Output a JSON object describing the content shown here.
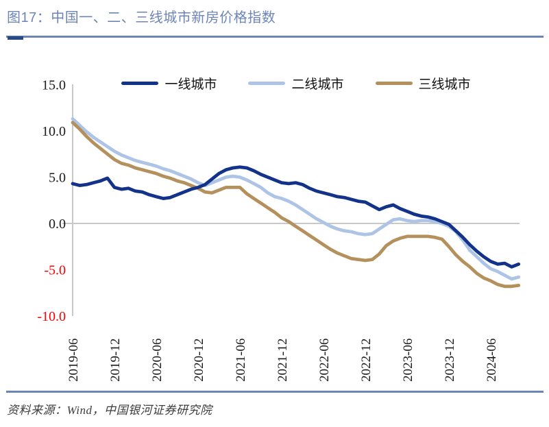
{
  "figure": {
    "title": "图17：中国一、二、三线城市新房价格指数"
  },
  "legend": {
    "items": [
      {
        "key": "tier1",
        "label": "一线城市"
      },
      {
        "key": "tier2",
        "label": "二线城市"
      },
      {
        "key": "tier3",
        "label": "三线城市"
      }
    ]
  },
  "footer": {
    "source": "资料来源：Wind，中国银河证券研究院"
  },
  "colors": {
    "accent_blue": "#6d84b7",
    "accent_dark": "#2a4a86",
    "axis_gray": "#c8c8c8",
    "tick_text": "#1a1a1a",
    "negative_red": "#ff0000"
  },
  "chart_data": {
    "type": "line",
    "title": "中国一、二、三线城市新房价格指数",
    "xlabel": "",
    "ylabel": "",
    "x_start": "2019-06",
    "x_end": "2024-10",
    "frequency": "monthly",
    "x_tick_labels": [
      "2019-06",
      "2019-12",
      "2020-06",
      "2020-12",
      "2021-06",
      "2021-12",
      "2022-06",
      "2022-12",
      "2023-06",
      "2023-12",
      "2024-06"
    ],
    "y_ticks": [
      15.0,
      10.0,
      5.0,
      0.0,
      -5.0,
      -10.0
    ],
    "ylim": [
      -10.0,
      15.0
    ],
    "grid": "zero-line-only",
    "legend_position": "top",
    "y_tick_negative_color": "#ff0000",
    "series": [
      {
        "name": "一线城市",
        "key": "tier1",
        "color": "#13328a",
        "values": [
          4.3,
          4.1,
          4.2,
          4.4,
          4.6,
          4.9,
          3.9,
          3.7,
          3.8,
          3.5,
          3.4,
          3.1,
          2.9,
          2.7,
          2.8,
          3.1,
          3.4,
          3.7,
          3.9,
          4.2,
          4.8,
          5.4,
          5.8,
          6.0,
          6.1,
          6.0,
          5.7,
          5.3,
          5.0,
          4.7,
          4.4,
          4.3,
          4.4,
          4.2,
          3.8,
          3.5,
          3.3,
          3.1,
          2.9,
          2.8,
          2.6,
          2.4,
          2.3,
          1.9,
          1.5,
          1.8,
          2.0,
          1.6,
          1.3,
          1.0,
          0.8,
          0.7,
          0.5,
          0.2,
          -0.1,
          -0.8,
          -1.5,
          -2.3,
          -3.0,
          -3.6,
          -4.1,
          -4.4,
          -4.3,
          -4.7,
          -4.4
        ]
      },
      {
        "name": "二线城市",
        "key": "tier2",
        "color": "#aec4e6",
        "values": [
          11.3,
          10.6,
          9.9,
          9.3,
          8.8,
          8.3,
          7.8,
          7.4,
          7.1,
          6.8,
          6.6,
          6.4,
          6.2,
          5.9,
          5.7,
          5.4,
          5.1,
          4.8,
          4.4,
          4.1,
          4.4,
          4.7,
          5.0,
          5.1,
          5.0,
          4.7,
          4.3,
          3.9,
          3.3,
          2.9,
          2.7,
          2.4,
          2.0,
          1.5,
          1.0,
          0.5,
          0.1,
          -0.3,
          -0.6,
          -0.8,
          -0.9,
          -1.1,
          -1.2,
          -1.1,
          -0.6,
          -0.1,
          0.4,
          0.5,
          0.3,
          0.2,
          0.3,
          0.3,
          0.2,
          0.0,
          -0.3,
          -0.9,
          -1.8,
          -2.9,
          -3.6,
          -4.3,
          -4.9,
          -5.2,
          -5.6,
          -6.0,
          -5.8
        ]
      },
      {
        "name": "三线城市",
        "key": "tier3",
        "color": "#b4915c",
        "values": [
          10.9,
          10.2,
          9.4,
          8.7,
          8.1,
          7.5,
          6.9,
          6.5,
          6.3,
          6.0,
          5.8,
          5.6,
          5.4,
          5.1,
          4.9,
          4.6,
          4.4,
          4.1,
          3.8,
          3.4,
          3.3,
          3.6,
          3.9,
          3.9,
          3.9,
          3.2,
          2.7,
          2.2,
          1.7,
          1.2,
          0.6,
          0.2,
          -0.3,
          -0.8,
          -1.3,
          -1.8,
          -2.3,
          -2.8,
          -3.2,
          -3.5,
          -3.8,
          -3.9,
          -4.0,
          -3.9,
          -3.3,
          -2.4,
          -1.9,
          -1.6,
          -1.4,
          -1.4,
          -1.4,
          -1.4,
          -1.5,
          -1.7,
          -2.5,
          -3.4,
          -4.1,
          -4.7,
          -5.4,
          -5.9,
          -6.2,
          -6.6,
          -6.8,
          -6.8,
          -6.7
        ]
      }
    ]
  }
}
